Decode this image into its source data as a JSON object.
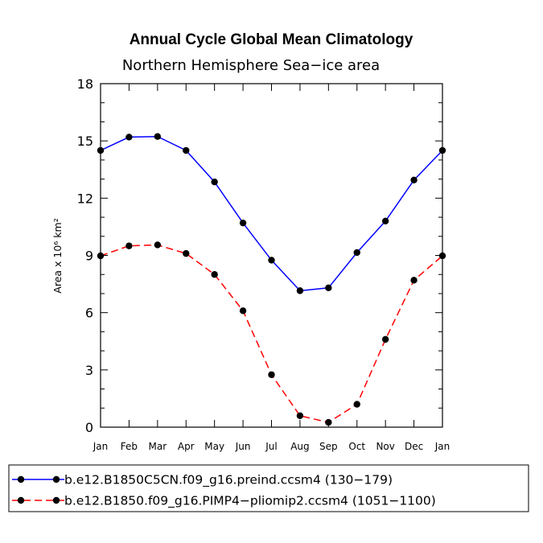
{
  "chart_data": {
    "type": "line",
    "title": "Annual Cycle Global Mean Climatology",
    "subtitle": "Northern Hemisphere Sea−ice area",
    "ylabel": "Area x 10⁶ km²",
    "xlabel": "",
    "ylim": [
      0,
      18
    ],
    "yticks": [
      0,
      3,
      6,
      9,
      12,
      15,
      18
    ],
    "categories": [
      "Jan",
      "Feb",
      "Mar",
      "Apr",
      "May",
      "Jun",
      "Jul",
      "Aug",
      "Sep",
      "Oct",
      "Nov",
      "Dec",
      "Jan"
    ],
    "series": [
      {
        "name": "b.e12.B1850C5CN.f09_g16.preind.ccsm4 (130−179)",
        "color": "#0000ff",
        "dash": "solid",
        "values": [
          14.5,
          15.2,
          15.23,
          14.5,
          12.85,
          10.7,
          8.75,
          7.15,
          7.3,
          9.15,
          10.8,
          12.95,
          14.5
        ]
      },
      {
        "name": "b.e12.B1850.f09_g16.PIMP4−pliomip2.ccsm4 (1051−1100)",
        "color": "#ff0000",
        "dash": "dashed",
        "values": [
          8.98,
          9.5,
          9.55,
          9.1,
          8.0,
          6.1,
          2.75,
          0.6,
          0.25,
          1.2,
          4.6,
          7.7,
          8.98
        ]
      }
    ],
    "legend": "bottom"
  }
}
